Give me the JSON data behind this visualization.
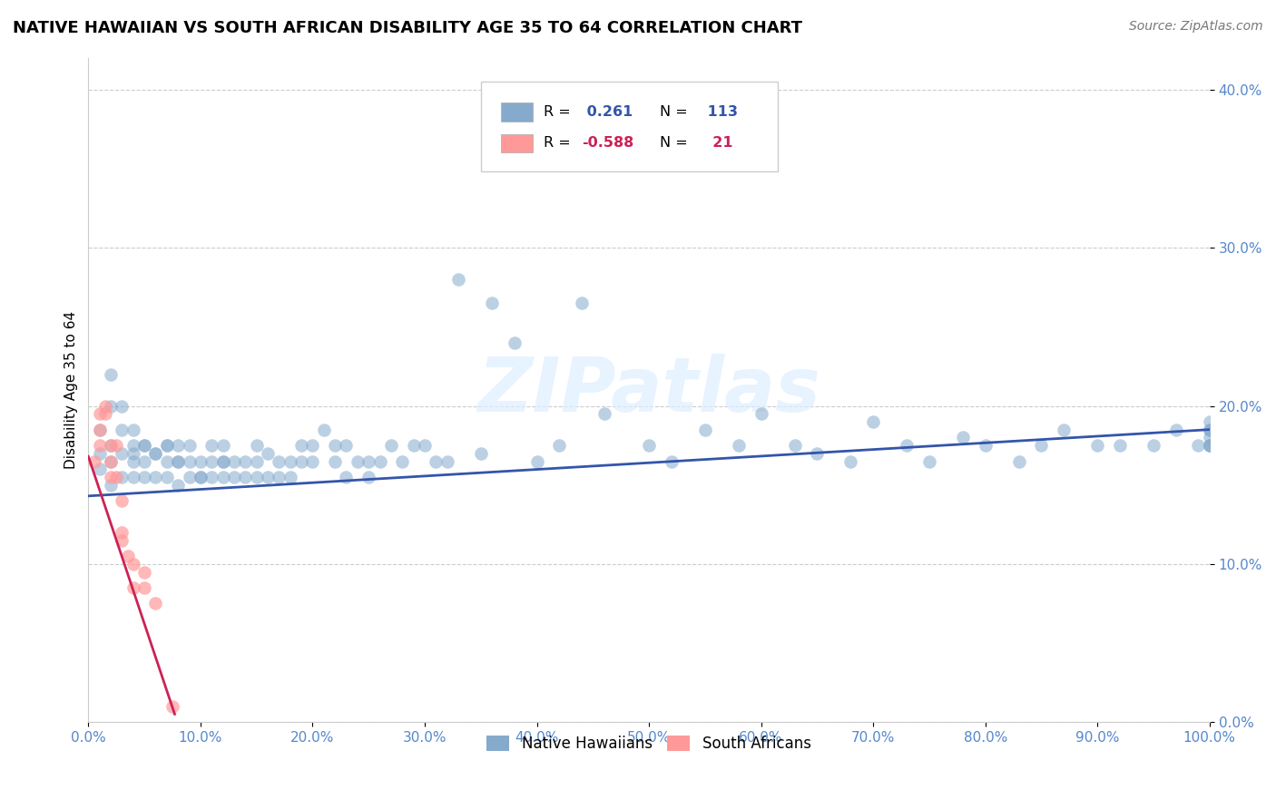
{
  "title": "NATIVE HAWAIIAN VS SOUTH AFRICAN DISABILITY AGE 35 TO 64 CORRELATION CHART",
  "source": "Source: ZipAtlas.com",
  "ylabel": "Disability Age 35 to 64",
  "xlim": [
    0,
    1.0
  ],
  "ylim": [
    0,
    0.42
  ],
  "xticks": [
    0.0,
    0.1,
    0.2,
    0.3,
    0.4,
    0.5,
    0.6,
    0.7,
    0.8,
    0.9,
    1.0
  ],
  "xtick_labels": [
    "0.0%",
    "10.0%",
    "20.0%",
    "30.0%",
    "40.0%",
    "50.0%",
    "60.0%",
    "70.0%",
    "80.0%",
    "90.0%",
    "100.0%"
  ],
  "yticks": [
    0.0,
    0.1,
    0.2,
    0.3,
    0.4
  ],
  "ytick_labels": [
    "0.0%",
    "10.0%",
    "20.0%",
    "30.0%",
    "40.0%"
  ],
  "blue_R": 0.261,
  "blue_N": 113,
  "pink_R": -0.588,
  "pink_N": 21,
  "blue_color": "#85AACC",
  "pink_color": "#FF9999",
  "blue_line_color": "#3355AA",
  "pink_line_color": "#CC2255",
  "legend_blue_label": "Native Hawaiians",
  "legend_pink_label": "South Africans",
  "blue_x": [
    0.01,
    0.01,
    0.01,
    0.02,
    0.02,
    0.02,
    0.02,
    0.02,
    0.03,
    0.03,
    0.03,
    0.03,
    0.04,
    0.04,
    0.04,
    0.04,
    0.04,
    0.05,
    0.05,
    0.05,
    0.05,
    0.06,
    0.06,
    0.06,
    0.07,
    0.07,
    0.07,
    0.07,
    0.08,
    0.08,
    0.08,
    0.08,
    0.09,
    0.09,
    0.09,
    0.1,
    0.1,
    0.1,
    0.11,
    0.11,
    0.11,
    0.12,
    0.12,
    0.12,
    0.12,
    0.13,
    0.13,
    0.14,
    0.14,
    0.15,
    0.15,
    0.15,
    0.16,
    0.16,
    0.17,
    0.17,
    0.18,
    0.18,
    0.19,
    0.19,
    0.2,
    0.2,
    0.21,
    0.22,
    0.22,
    0.23,
    0.23,
    0.24,
    0.25,
    0.25,
    0.26,
    0.27,
    0.28,
    0.29,
    0.3,
    0.31,
    0.32,
    0.33,
    0.35,
    0.36,
    0.38,
    0.4,
    0.42,
    0.44,
    0.46,
    0.5,
    0.52,
    0.55,
    0.58,
    0.6,
    0.63,
    0.65,
    0.68,
    0.7,
    0.73,
    0.75,
    0.78,
    0.8,
    0.83,
    0.85,
    0.87,
    0.9,
    0.92,
    0.95,
    0.97,
    0.99,
    1.0,
    1.0,
    1.0,
    1.0,
    1.0,
    1.0,
    1.0
  ],
  "blue_y": [
    0.17,
    0.16,
    0.185,
    0.175,
    0.2,
    0.165,
    0.15,
    0.22,
    0.185,
    0.17,
    0.155,
    0.2,
    0.175,
    0.165,
    0.155,
    0.17,
    0.185,
    0.155,
    0.175,
    0.165,
    0.175,
    0.17,
    0.155,
    0.17,
    0.175,
    0.165,
    0.155,
    0.175,
    0.165,
    0.15,
    0.175,
    0.165,
    0.155,
    0.165,
    0.175,
    0.155,
    0.165,
    0.155,
    0.165,
    0.155,
    0.175,
    0.165,
    0.155,
    0.175,
    0.165,
    0.155,
    0.165,
    0.165,
    0.155,
    0.175,
    0.165,
    0.155,
    0.17,
    0.155,
    0.165,
    0.155,
    0.165,
    0.155,
    0.165,
    0.175,
    0.175,
    0.165,
    0.185,
    0.165,
    0.175,
    0.155,
    0.175,
    0.165,
    0.165,
    0.155,
    0.165,
    0.175,
    0.165,
    0.175,
    0.175,
    0.165,
    0.165,
    0.28,
    0.17,
    0.265,
    0.24,
    0.165,
    0.175,
    0.265,
    0.195,
    0.175,
    0.165,
    0.185,
    0.175,
    0.195,
    0.175,
    0.17,
    0.165,
    0.19,
    0.175,
    0.165,
    0.18,
    0.175,
    0.165,
    0.175,
    0.185,
    0.175,
    0.175,
    0.175,
    0.185,
    0.175,
    0.18,
    0.175,
    0.185,
    0.19,
    0.175,
    0.185,
    0.175
  ],
  "pink_x": [
    0.005,
    0.01,
    0.01,
    0.01,
    0.015,
    0.015,
    0.02,
    0.02,
    0.02,
    0.025,
    0.025,
    0.03,
    0.03,
    0.03,
    0.035,
    0.04,
    0.04,
    0.05,
    0.05,
    0.06,
    0.075
  ],
  "pink_y": [
    0.165,
    0.195,
    0.185,
    0.175,
    0.195,
    0.2,
    0.175,
    0.165,
    0.155,
    0.155,
    0.175,
    0.14,
    0.12,
    0.115,
    0.105,
    0.1,
    0.085,
    0.085,
    0.095,
    0.075,
    0.01
  ],
  "blue_line_x0": 0.0,
  "blue_line_x1": 1.0,
  "blue_line_y0": 0.143,
  "blue_line_y1": 0.185,
  "pink_line_x0": 0.0,
  "pink_line_x1": 0.077,
  "pink_line_y0": 0.168,
  "pink_line_y1": 0.005,
  "watermark": "ZIPatlas",
  "bg_color": "#FFFFFF",
  "grid_color": "#CCCCCC",
  "tick_color": "#5588CC"
}
